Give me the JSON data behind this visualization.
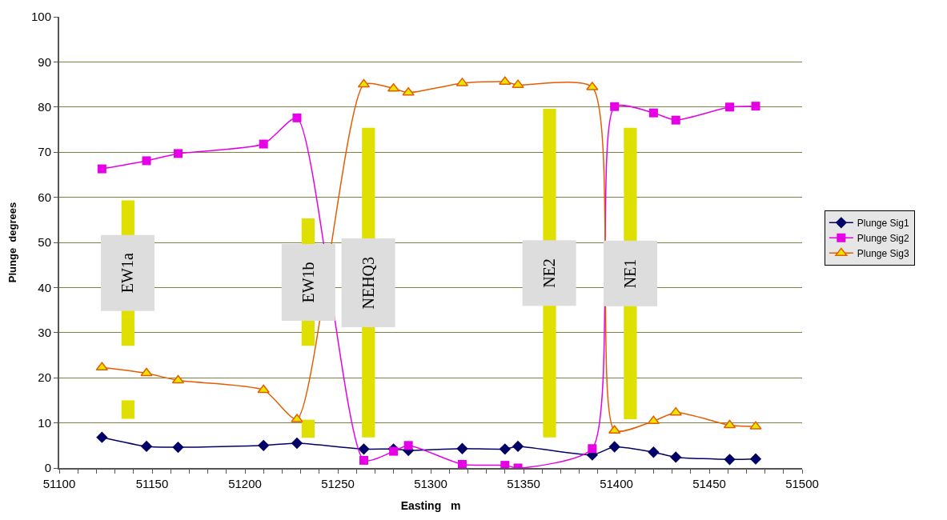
{
  "chart_data": {
    "type": "line",
    "xlabel": "Easting   m",
    "ylabel": "Plunge  degrees",
    "x": [
      51123,
      51147,
      51164,
      51210,
      51228,
      51264,
      51280,
      51288,
      51317,
      51340,
      51347,
      51387,
      51399,
      51420,
      51432,
      51461,
      51475
    ],
    "series": [
      {
        "type": "bar",
        "color": "#e0e000",
        "x": [
          51137,
          51234,
          51266.5,
          51364,
          51407.5
        ],
        "base": [
          27.1,
          27.1,
          6.8,
          6.8,
          10.8
        ],
        "values": [
          32.2,
          28.2,
          68.6,
          72.8,
          64.6
        ]
      },
      {
        "type": "bar",
        "color": "#e0e000",
        "x": [
          51137,
          51234
        ],
        "base": [
          10.9,
          6.7
        ],
        "values": [
          4.1,
          4.0
        ]
      },
      {
        "name": "Plunge Sig1",
        "color": "#000066",
        "marker": "diamond",
        "values": [
          6.8,
          4.8,
          4.6,
          5.0,
          5.5,
          4.2,
          4.2,
          3.9,
          4.3,
          4.2,
          4.8,
          2.9,
          4.7,
          3.5,
          2.4,
          1.9,
          2.0
        ]
      },
      {
        "name": "Plunge Sig2",
        "color": "#e600e6",
        "marker": "square",
        "values": [
          66.3,
          68.1,
          69.7,
          71.8,
          77.6,
          1.7,
          3.7,
          5.0,
          0.8,
          0.6,
          0.0,
          4.3,
          80.1,
          78.7,
          77.1,
          80.0,
          80.2
        ]
      },
      {
        "name": "Plunge Sig3",
        "color": "#e65c00",
        "marker": "triangle",
        "values": [
          22.3,
          21.0,
          19.4,
          17.3,
          10.8,
          85.0,
          84.1,
          83.2,
          85.3,
          85.6,
          84.9,
          84.4,
          8.3,
          10.4,
          12.3,
          9.5,
          9.2
        ]
      }
    ],
    "annotations": [
      "EW1a",
      "EW1b",
      "NEHQ3",
      "NE2",
      "NE1"
    ],
    "xlim": [
      51100,
      51500
    ],
    "xticks": [
      51100,
      {
        "value": 51110,
        "label": null
      },
      {
        "value": 51120,
        "label": null
      },
      {
        "value": 51130,
        "label": null
      },
      {
        "value": 51140,
        "label": null
      },
      51150,
      {
        "value": 51160,
        "label": null
      },
      {
        "value": 51170,
        "label": null
      },
      {
        "value": 51180,
        "label": null
      },
      {
        "value": 51190,
        "label": null
      },
      51200,
      {
        "value": 51210,
        "label": null
      },
      {
        "value": 51220,
        "label": null
      },
      {
        "value": 51230,
        "label": null
      },
      {
        "value": 51240,
        "label": null
      },
      51250,
      {
        "value": 51260,
        "label": null
      },
      {
        "value": 51270,
        "label": null
      },
      {
        "value": 51280,
        "label": null
      },
      {
        "value": 51290,
        "label": null
      },
      51300,
      {
        "value": 51310,
        "label": null
      },
      {
        "value": 51320,
        "label": null
      },
      {
        "value": 51330,
        "label": null
      },
      {
        "value": 51340,
        "label": null
      },
      51350,
      {
        "value": 51360,
        "label": null
      },
      {
        "value": 51370,
        "label": null
      },
      {
        "value": 51380,
        "label": null
      },
      {
        "value": 51390,
        "label": null
      },
      51400,
      {
        "value": 51410,
        "label": null
      },
      {
        "value": 51420,
        "label": null
      },
      {
        "value": 51430,
        "label": null
      },
      {
        "value": 51440,
        "label": null
      },
      51450,
      {
        "value": 51460,
        "label": null
      },
      {
        "value": 51470,
        "label": null
      },
      {
        "value": 51480,
        "label": null
      },
      {
        "value": 51490,
        "label": null
      },
      51500
    ],
    "ylim": [
      0,
      100
    ],
    "yticks": [
      0,
      10,
      20,
      30,
      40,
      50,
      60,
      70,
      80,
      90,
      100
    ],
    "grid": "y",
    "legend": "right",
    "line_style": "solid"
  }
}
